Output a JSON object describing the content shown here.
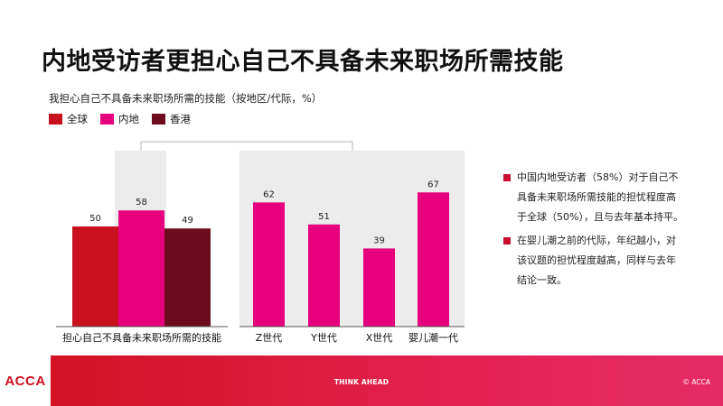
{
  "title": "内地受访者更担心自己不具备未来职场所需技能",
  "subtitle": "我担心自己不具备未来职场所需的技能（按地区/代际，%）",
  "legend": [
    {
      "label": "全球",
      "color": "#c8101e"
    },
    {
      "label": "内地",
      "color": "#e6007e"
    },
    {
      "label": "香港",
      "color": "#6e0c1f"
    }
  ],
  "chart_data": [
    {
      "type": "bar",
      "categories": [
        "担心自己不具备未来职场所需的技能"
      ],
      "series": [
        {
          "name": "全球",
          "values": [
            50
          ]
        },
        {
          "name": "内地",
          "values": [
            58
          ]
        },
        {
          "name": "香港",
          "values": [
            49
          ]
        }
      ],
      "ylim": [
        0,
        100
      ]
    },
    {
      "type": "bar",
      "categories": [
        "Z世代",
        "Y世代",
        "X世代",
        "婴儿潮一代"
      ],
      "series": [
        {
          "name": "内地",
          "values": [
            62,
            51,
            39,
            67
          ]
        }
      ],
      "ylim": [
        0,
        100
      ]
    }
  ],
  "notes": [
    "中国内地受访者（58%）对于自己不具备未来职场所需技能的担忧程度高于全球（50%），且与去年基本持平。",
    "在婴儿潮之前的代际，年纪越小，对该议题的担忧程度越高，同样与去年结论一致。"
  ],
  "footer": {
    "logo": "ACCA",
    "tagline": "THINK AHEAD",
    "copyright": "© ACCA"
  }
}
